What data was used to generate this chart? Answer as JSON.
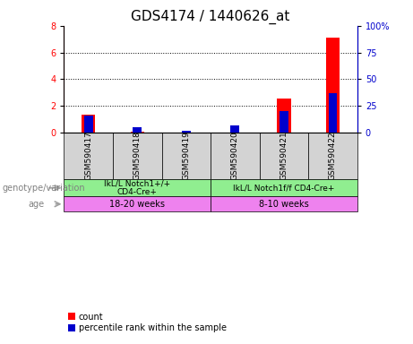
{
  "title": "GDS4174 / 1440626_at",
  "samples": [
    "GSM590417",
    "GSM590418",
    "GSM590419",
    "GSM590420",
    "GSM590421",
    "GSM590422"
  ],
  "count_values": [
    1.35,
    0.08,
    0.0,
    0.0,
    2.55,
    7.1
  ],
  "percentile_values": [
    16,
    5,
    2,
    7,
    20,
    37
  ],
  "ylim_left": [
    0,
    8
  ],
  "ylim_right": [
    0,
    100
  ],
  "yticks_left": [
    0,
    2,
    4,
    6,
    8
  ],
  "yticks_right": [
    0,
    25,
    50,
    75,
    100
  ],
  "ytick_labels_right": [
    "0",
    "25",
    "50",
    "75",
    "100%"
  ],
  "count_color": "#ff0000",
  "percentile_color": "#0000cc",
  "genotype_groups": [
    {
      "label": "IkL/L Notch1+/+\nCD4-Cre+",
      "color": "#90ee90"
    },
    {
      "label": "IkL/L Notch1f/f CD4-Cre+",
      "color": "#90ee90"
    }
  ],
  "age_groups": [
    {
      "label": "18-20 weeks",
      "color": "#ee82ee"
    },
    {
      "label": "8-10 weeks",
      "color": "#ee82ee"
    }
  ],
  "genotype_label": "genotype/variation",
  "age_label": "age",
  "legend_count": "count",
  "legend_percentile": "percentile rank within the sample",
  "sample_box_color": "#d3d3d3",
  "grid_color": "#000000",
  "title_fontsize": 11,
  "axis_fontsize": 8,
  "tick_label_fontsize": 7
}
